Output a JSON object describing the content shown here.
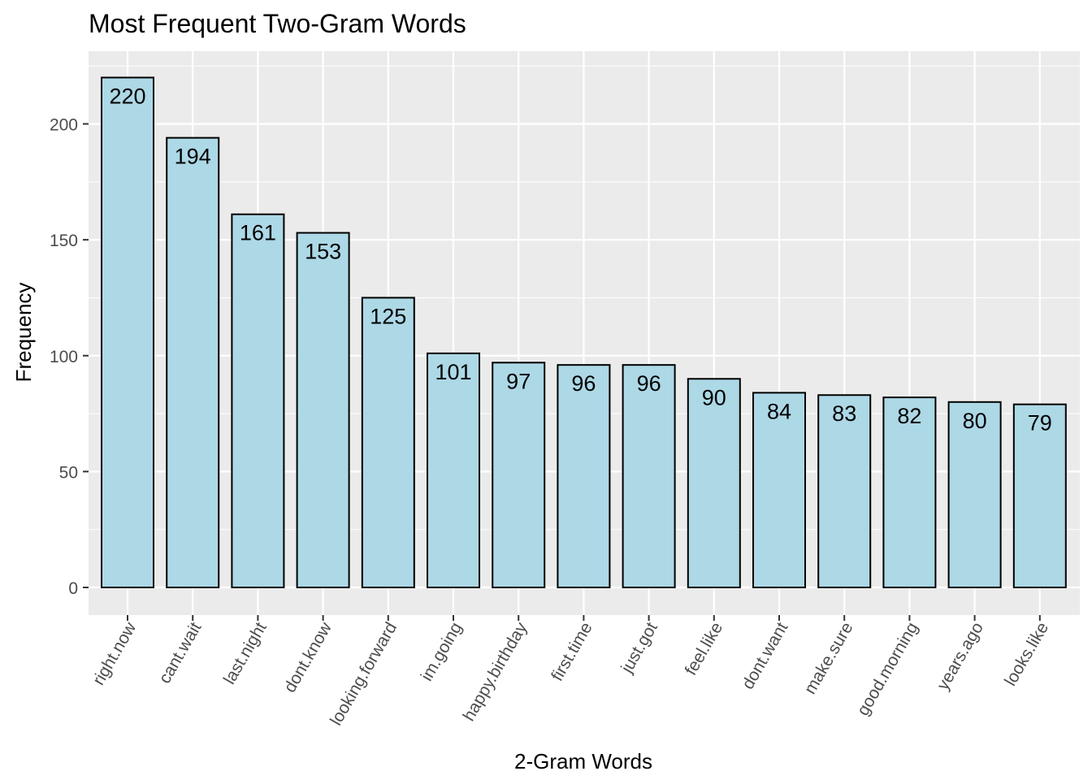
{
  "chart_data": {
    "type": "bar",
    "title": "Most Frequent Two-Gram Words",
    "xlabel": "2-Gram Words",
    "ylabel": "Frequency",
    "categories": [
      "right.now",
      "cant.wait",
      "last.night",
      "dont.know",
      "looking.forward",
      "im.going",
      "happy.birthday",
      "first.time",
      "just.got",
      "feel.like",
      "dont.want",
      "make.sure",
      "good.morning",
      "years.ago",
      "looks.like"
    ],
    "values": [
      220,
      194,
      161,
      153,
      125,
      101,
      97,
      96,
      96,
      90,
      84,
      83,
      82,
      80,
      79
    ],
    "ylim": [
      0,
      231
    ],
    "y_ticks": [
      0,
      50,
      100,
      150,
      200
    ],
    "grid": true,
    "legend": "none",
    "colors": {
      "panel_background": "#EBEBEB",
      "grid": "#FFFFFF",
      "bar_fill": "#ADD8E6",
      "bar_outline": "#000000",
      "axis_text": "#4D4D4D",
      "title_text": "#000000",
      "label_text": "#000000"
    }
  }
}
